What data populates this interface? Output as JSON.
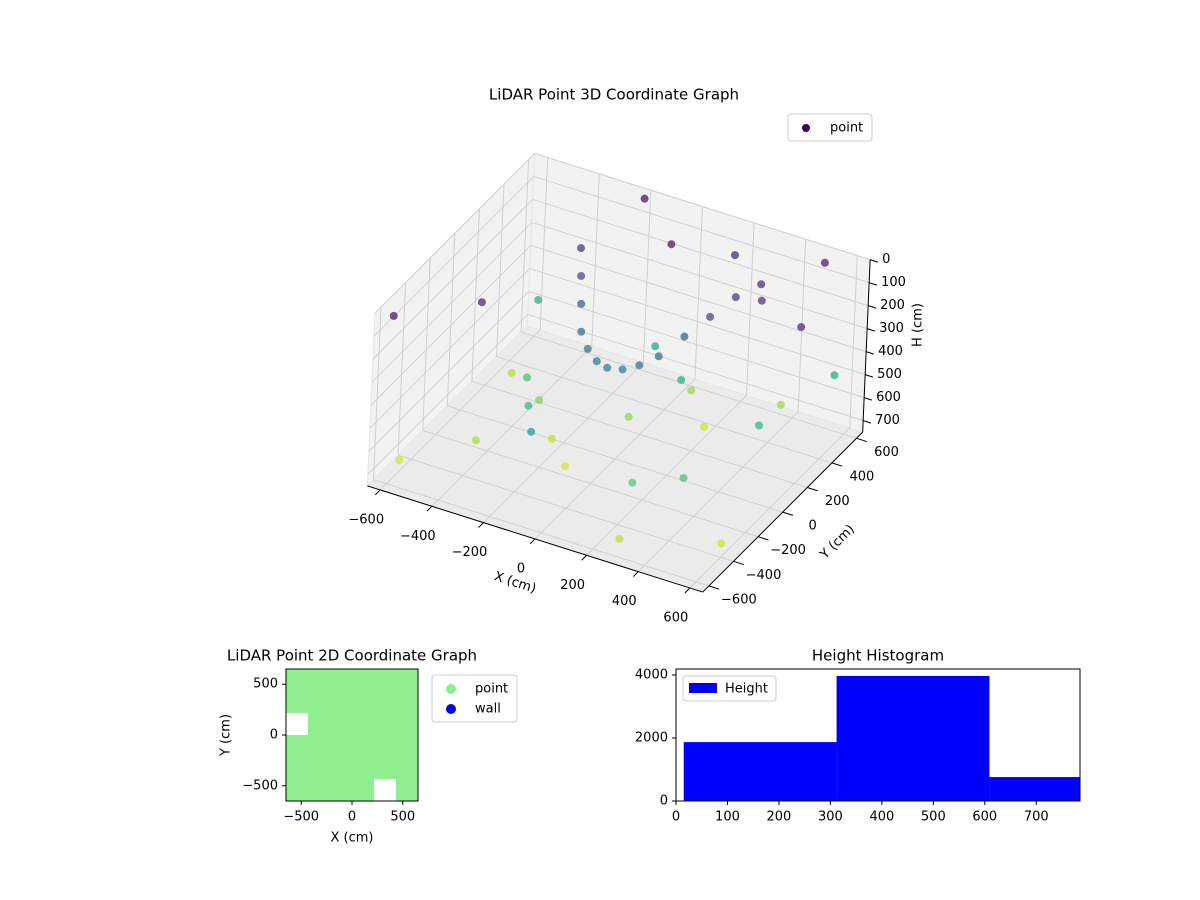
{
  "chart_data": [
    {
      "type": "scatter3d",
      "title": "LiDAR Point 3D Coordinate Graph",
      "xlabel": "X (cm)",
      "ylabel": "Y (cm)",
      "zlabel": "H (cm)",
      "xlim": [
        -650,
        650
      ],
      "ylim": [
        -650,
        650
      ],
      "zlim": [
        0,
        750
      ],
      "z_inverted": true,
      "xticks": [
        {
          "value": -600,
          "label": "−600"
        },
        {
          "value": -400,
          "label": "−400"
        },
        {
          "value": -200,
          "label": "−200"
        },
        0,
        200,
        400,
        600
      ],
      "yticks": [
        {
          "value": -600,
          "label": "−600"
        },
        {
          "value": -400,
          "label": "−400"
        },
        {
          "value": -200,
          "label": "−200"
        },
        0,
        200,
        400,
        600
      ],
      "zticks": [
        0,
        100,
        200,
        300,
        400,
        500,
        600,
        700
      ],
      "colormap": "viridis",
      "legend": "upper right",
      "grid": true,
      "series": [
        {
          "name": "point",
          "color": "#440154",
          "x": [
            -600,
            -400,
            -200,
            0,
            200,
            400,
            600,
            -500,
            -300,
            -100,
            100,
            300,
            -500,
            -250,
            0,
            250,
            500,
            -350,
            -100,
            150,
            400,
            600,
            -300,
            -250,
            -200,
            -150,
            -100,
            -50,
            0,
            50,
            100,
            150,
            200,
            250,
            300,
            350,
            -600,
            -400,
            0,
            200,
            400,
            500,
            600,
            -200
          ],
          "y": [
            -500,
            -300,
            -100,
            100,
            300,
            500,
            -400,
            200,
            0,
            -200,
            400,
            -600,
            400,
            -200,
            300,
            -400,
            100,
            0,
            -500,
            200,
            -300,
            500,
            300,
            200,
            100,
            0,
            -50,
            -80,
            -100,
            -80,
            -50,
            0,
            100,
            200,
            300,
            400,
            -600,
            -300,
            400,
            500,
            300,
            600,
            200,
            600
          ],
          "z": [
            700,
            650,
            680,
            620,
            700,
            640,
            690,
            660,
            600,
            710,
            630,
            670,
            450,
            500,
            420,
            550,
            480,
            520,
            400,
            460,
            530,
            440,
            100,
            150,
            200,
            250,
            280,
            300,
            300,
            300,
            280,
            250,
            200,
            150,
            100,
            80,
            20,
            50,
            30,
            60,
            80,
            40,
            70,
            10
          ]
        }
      ]
    },
    {
      "type": "scatter",
      "title": "LiDAR Point 2D Coordinate Graph",
      "xlabel": "X (cm)",
      "ylabel": "Y (cm)",
      "xlim": [
        -650,
        650
      ],
      "ylim": [
        -650,
        650
      ],
      "xticks": [
        {
          "value": -500,
          "label": "−500"
        },
        0,
        500
      ],
      "yticks": [
        {
          "value": -500,
          "label": "−500"
        },
        0,
        500
      ],
      "marker_size": 217,
      "legend": "outside right",
      "series": [
        {
          "name": "point",
          "color": "#90ee90",
          "x": [
            -542,
            -325,
            -108,
            108,
            325,
            542,
            -542,
            -325,
            -108,
            108,
            325,
            542,
            -325,
            -108,
            108,
            325,
            542,
            -542,
            -325,
            -108,
            108,
            325,
            542,
            -542,
            -325,
            -108,
            108,
            325,
            542,
            -542,
            -325,
            -108,
            108,
            542
          ],
          "y": [
            542,
            542,
            542,
            542,
            542,
            542,
            325,
            325,
            325,
            325,
            325,
            325,
            108,
            108,
            108,
            108,
            108,
            -108,
            -108,
            -108,
            -108,
            -108,
            -108,
            -325,
            -325,
            -325,
            -325,
            -325,
            -325,
            -542,
            -542,
            -542,
            -542,
            -542
          ]
        },
        {
          "name": "wall",
          "color": "#0000ff",
          "x": [],
          "y": []
        }
      ]
    },
    {
      "type": "histogram",
      "title": "Height Histogram",
      "bins": [
        15,
        312,
        609,
        785
      ],
      "counts": [
        1870,
        3970,
        760
      ],
      "xlim": [
        0,
        785
      ],
      "ylim": [
        0,
        4190
      ],
      "xticks": [
        0,
        100,
        200,
        300,
        400,
        500,
        600,
        700
      ],
      "yticks": [
        0,
        2000,
        4000
      ],
      "series_name": "Height",
      "color": "#0000ff",
      "legend": "upper left"
    }
  ]
}
